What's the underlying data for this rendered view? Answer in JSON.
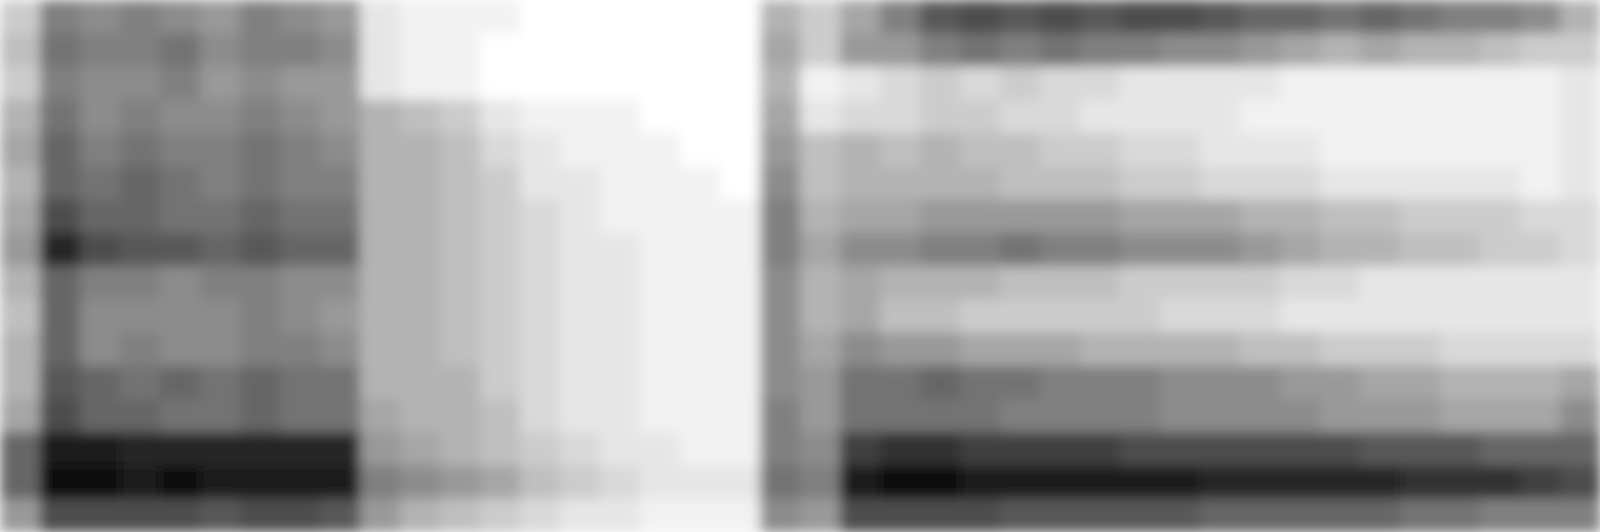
{
  "chart_data": {
    "type": "heatmap",
    "tick_labels": false,
    "zlim": [
      0,
      1
    ],
    "cells": [
      [
        0.2,
        0.5,
        0.45,
        0.5,
        0.45,
        0.4,
        0.5,
        0.45,
        0.4,
        0.1,
        0.05,
        0.05,
        0.05,
        0,
        0,
        0,
        0,
        0,
        0,
        0.3,
        0.2,
        0.35,
        0.5,
        0.65,
        0.7,
        0.65,
        0.7,
        0.65,
        0.7,
        0.7,
        0.65,
        0.6,
        0.6,
        0.55,
        0.6,
        0.55,
        0.5,
        0.5,
        0.45,
        0.3
      ],
      [
        0.25,
        0.55,
        0.5,
        0.5,
        0.55,
        0.45,
        0.5,
        0.5,
        0.45,
        0.1,
        0.05,
        0.05,
        0,
        0,
        0,
        0,
        0,
        0,
        0,
        0.35,
        0.2,
        0.4,
        0.4,
        0.5,
        0.55,
        0.5,
        0.55,
        0.5,
        0.5,
        0.45,
        0.45,
        0.4,
        0.35,
        0.3,
        0.35,
        0.3,
        0.3,
        0.25,
        0.2,
        0.2
      ],
      [
        0.2,
        0.5,
        0.45,
        0.45,
        0.5,
        0.4,
        0.45,
        0.4,
        0.4,
        0.1,
        0.05,
        0.05,
        0,
        0,
        0,
        0,
        0,
        0,
        0,
        0.3,
        0.05,
        0.1,
        0.15,
        0.2,
        0.15,
        0.2,
        0.15,
        0.15,
        0.1,
        0.1,
        0.1,
        0.1,
        0.05,
        0.05,
        0.05,
        0.05,
        0.05,
        0.05,
        0.05,
        0.1
      ],
      [
        0.3,
        0.55,
        0.45,
        0.5,
        0.45,
        0.45,
        0.5,
        0.45,
        0.4,
        0.3,
        0.25,
        0.2,
        0.1,
        0.05,
        0.05,
        0.05,
        0,
        0,
        0,
        0.35,
        0.1,
        0.15,
        0.15,
        0.2,
        0.2,
        0.15,
        0.15,
        0.1,
        0.1,
        0.1,
        0.1,
        0.05,
        0.05,
        0.05,
        0.05,
        0.05,
        0.05,
        0.05,
        0.05,
        0.1
      ],
      [
        0.35,
        0.6,
        0.5,
        0.55,
        0.5,
        0.5,
        0.55,
        0.5,
        0.45,
        0.3,
        0.3,
        0.25,
        0.15,
        0.1,
        0.05,
        0.05,
        0.05,
        0,
        0,
        0.4,
        0.25,
        0.3,
        0.25,
        0.3,
        0.25,
        0.25,
        0.2,
        0.2,
        0.15,
        0.15,
        0.1,
        0.1,
        0.1,
        0.05,
        0.05,
        0.05,
        0.05,
        0.05,
        0.05,
        0.1
      ],
      [
        0.3,
        0.6,
        0.55,
        0.6,
        0.55,
        0.5,
        0.55,
        0.5,
        0.5,
        0.3,
        0.3,
        0.25,
        0.2,
        0.1,
        0.1,
        0.05,
        0.05,
        0.05,
        0,
        0.45,
        0.25,
        0.3,
        0.3,
        0.3,
        0.3,
        0.25,
        0.25,
        0.25,
        0.2,
        0.2,
        0.15,
        0.15,
        0.15,
        0.1,
        0.1,
        0.1,
        0.1,
        0.1,
        0.05,
        0.1
      ],
      [
        0.35,
        0.7,
        0.6,
        0.6,
        0.55,
        0.55,
        0.6,
        0.55,
        0.55,
        0.3,
        0.3,
        0.25,
        0.2,
        0.15,
        0.1,
        0.05,
        0.05,
        0.05,
        0.05,
        0.5,
        0.3,
        0.35,
        0.35,
        0.4,
        0.4,
        0.4,
        0.4,
        0.4,
        0.35,
        0.35,
        0.35,
        0.3,
        0.3,
        0.25,
        0.25,
        0.2,
        0.2,
        0.2,
        0.15,
        0.15
      ],
      [
        0.4,
        0.85,
        0.7,
        0.65,
        0.65,
        0.6,
        0.65,
        0.6,
        0.6,
        0.3,
        0.3,
        0.25,
        0.2,
        0.15,
        0.1,
        0.1,
        0.05,
        0.05,
        0.05,
        0.5,
        0.35,
        0.45,
        0.45,
        0.5,
        0.5,
        0.55,
        0.5,
        0.5,
        0.45,
        0.45,
        0.45,
        0.4,
        0.35,
        0.3,
        0.3,
        0.25,
        0.25,
        0.2,
        0.2,
        0.15
      ],
      [
        0.3,
        0.6,
        0.5,
        0.5,
        0.45,
        0.5,
        0.5,
        0.45,
        0.45,
        0.3,
        0.3,
        0.25,
        0.2,
        0.15,
        0.1,
        0.1,
        0.05,
        0.05,
        0.05,
        0.45,
        0.3,
        0.35,
        0.3,
        0.3,
        0.3,
        0.25,
        0.25,
        0.25,
        0.2,
        0.2,
        0.2,
        0.2,
        0.15,
        0.15,
        0.1,
        0.1,
        0.1,
        0.1,
        0.1,
        0.1
      ],
      [
        0.25,
        0.6,
        0.45,
        0.45,
        0.45,
        0.45,
        0.5,
        0.45,
        0.4,
        0.3,
        0.3,
        0.25,
        0.2,
        0.15,
        0.1,
        0.1,
        0.05,
        0.05,
        0.05,
        0.45,
        0.3,
        0.35,
        0.25,
        0.25,
        0.2,
        0.2,
        0.2,
        0.2,
        0.2,
        0.15,
        0.15,
        0.15,
        0.1,
        0.1,
        0.1,
        0.1,
        0.1,
        0.1,
        0.1,
        0.1
      ],
      [
        0.3,
        0.6,
        0.45,
        0.5,
        0.45,
        0.45,
        0.5,
        0.5,
        0.45,
        0.3,
        0.3,
        0.25,
        0.2,
        0.15,
        0.1,
        0.1,
        0.05,
        0.05,
        0.05,
        0.45,
        0.35,
        0.45,
        0.4,
        0.4,
        0.35,
        0.35,
        0.35,
        0.3,
        0.3,
        0.3,
        0.3,
        0.25,
        0.25,
        0.2,
        0.2,
        0.2,
        0.15,
        0.15,
        0.15,
        0.15
      ],
      [
        0.3,
        0.65,
        0.6,
        0.55,
        0.6,
        0.55,
        0.6,
        0.55,
        0.55,
        0.3,
        0.3,
        0.3,
        0.2,
        0.15,
        0.1,
        0.1,
        0.05,
        0.05,
        0.05,
        0.45,
        0.4,
        0.55,
        0.55,
        0.6,
        0.55,
        0.55,
        0.5,
        0.5,
        0.5,
        0.45,
        0.45,
        0.45,
        0.4,
        0.4,
        0.35,
        0.35,
        0.3,
        0.3,
        0.3,
        0.35
      ],
      [
        0.35,
        0.7,
        0.6,
        0.6,
        0.55,
        0.55,
        0.6,
        0.55,
        0.55,
        0.35,
        0.3,
        0.3,
        0.25,
        0.15,
        0.1,
        0.1,
        0.05,
        0.05,
        0.05,
        0.5,
        0.4,
        0.55,
        0.55,
        0.55,
        0.55,
        0.5,
        0.5,
        0.5,
        0.5,
        0.45,
        0.45,
        0.45,
        0.45,
        0.4,
        0.4,
        0.4,
        0.35,
        0.35,
        0.35,
        0.45
      ],
      [
        0.6,
        0.9,
        0.9,
        0.85,
        0.85,
        0.85,
        0.85,
        0.85,
        0.85,
        0.4,
        0.35,
        0.3,
        0.25,
        0.2,
        0.15,
        0.1,
        0.1,
        0.05,
        0.05,
        0.5,
        0.45,
        0.75,
        0.8,
        0.8,
        0.75,
        0.75,
        0.75,
        0.75,
        0.7,
        0.7,
        0.7,
        0.7,
        0.7,
        0.7,
        0.65,
        0.65,
        0.65,
        0.6,
        0.6,
        0.6
      ],
      [
        0.6,
        0.95,
        0.95,
        0.9,
        0.95,
        0.9,
        0.9,
        0.9,
        0.9,
        0.5,
        0.45,
        0.4,
        0.35,
        0.25,
        0.2,
        0.15,
        0.1,
        0.1,
        0.1,
        0.55,
        0.5,
        0.9,
        0.95,
        0.95,
        0.9,
        0.9,
        0.9,
        0.9,
        0.9,
        0.9,
        0.85,
        0.85,
        0.85,
        0.85,
        0.85,
        0.8,
        0.8,
        0.8,
        0.75,
        0.7
      ],
      [
        0.4,
        0.7,
        0.7,
        0.7,
        0.7,
        0.65,
        0.7,
        0.7,
        0.65,
        0.4,
        0.3,
        0.25,
        0.2,
        0.15,
        0.1,
        0.1,
        0.05,
        0.05,
        0.05,
        0.45,
        0.4,
        0.7,
        0.7,
        0.7,
        0.7,
        0.65,
        0.65,
        0.65,
        0.65,
        0.65,
        0.6,
        0.6,
        0.6,
        0.6,
        0.6,
        0.55,
        0.55,
        0.5,
        0.5,
        0.5
      ]
    ]
  }
}
